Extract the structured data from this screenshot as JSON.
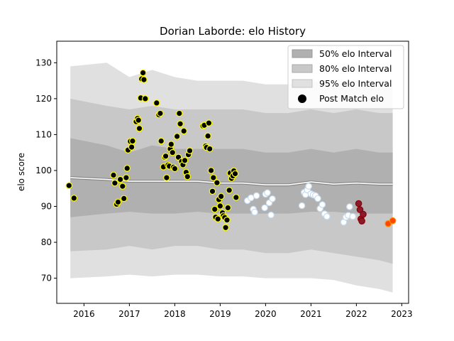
{
  "chart_data": {
    "type": "scatter",
    "title": "Dorian Laborde: elo History",
    "xlabel": "",
    "ylabel": "elo score",
    "xlim": [
      2015.4,
      2023.15
    ],
    "ylim": [
      63,
      136
    ],
    "x_ticks": [
      2016,
      2017,
      2018,
      2019,
      2020,
      2021,
      2022,
      2023
    ],
    "y_ticks": [
      70,
      80,
      90,
      100,
      110,
      120,
      130
    ],
    "grid": false,
    "legend_position": "top-right",
    "legend": [
      {
        "label": "50% elo Interval",
        "color": "#b0b0b0"
      },
      {
        "label": "80% elo Interval",
        "color": "#c8c8c8"
      },
      {
        "label": "95% elo Interval",
        "color": "#e0e0e0"
      },
      {
        "label": "Post Match elo",
        "color": "#000000"
      }
    ],
    "bands": {
      "x": [
        2015.7,
        2016.5,
        2017.0,
        2017.5,
        2018.0,
        2018.5,
        2019.0,
        2019.5,
        2020.0,
        2020.5,
        2021.0,
        2021.5,
        2022.0,
        2022.5,
        2022.8
      ],
      "p95_upper": [
        129,
        130,
        126,
        128,
        126,
        125,
        125,
        125,
        124,
        124,
        125,
        124,
        125,
        124,
        124
      ],
      "p80_upper": [
        120,
        118,
        117,
        118,
        117,
        117,
        117,
        117,
        116,
        116,
        117,
        116,
        117,
        116,
        116
      ],
      "p50_upper": [
        109,
        107,
        105,
        107,
        106,
        106,
        106,
        106,
        105,
        105,
        106,
        105,
        106,
        105,
        105
      ],
      "median": [
        98,
        97.5,
        97,
        97,
        97,
        97,
        96.5,
        96.5,
        96,
        96,
        96.8,
        96.2,
        96.5,
        96.2,
        96.2
      ],
      "p50_lower": [
        87,
        88,
        88.5,
        88,
        88,
        88.5,
        88,
        88,
        88,
        88,
        88.5,
        88.5,
        88,
        88,
        88
      ],
      "p80_lower": [
        77.5,
        78,
        79,
        78,
        79,
        79,
        78,
        78,
        77,
        77,
        78,
        77,
        76,
        75,
        74
      ],
      "p95_lower": [
        70,
        70.5,
        71,
        70.5,
        71,
        71,
        70.5,
        70.5,
        70,
        70,
        70,
        69.5,
        68,
        67,
        66
      ]
    },
    "series": [
      {
        "name": "",
        "edge": "#ffff00",
        "fill": "#000000",
        "points": [
          [
            2015.67,
            95.8
          ],
          [
            2015.78,
            92.3
          ],
          [
            2016.65,
            98.7
          ],
          [
            2016.68,
            96.5
          ],
          [
            2016.72,
            90.6
          ],
          [
            2016.75,
            91.2
          ],
          [
            2016.8,
            97.5
          ],
          [
            2016.85,
            95.6
          ],
          [
            2016.88,
            92.2
          ],
          [
            2016.93,
            98.0
          ],
          [
            2016.95,
            100.6
          ],
          [
            2016.97,
            105.7
          ],
          [
            2017.02,
            108.1
          ],
          [
            2017.05,
            106.5
          ],
          [
            2017.07,
            108.2
          ],
          [
            2017.15,
            113.6
          ],
          [
            2017.18,
            114.5
          ],
          [
            2017.2,
            114.0
          ],
          [
            2017.22,
            111.7
          ],
          [
            2017.25,
            120.2
          ],
          [
            2017.27,
            125.5
          ],
          [
            2017.3,
            127.2
          ],
          [
            2017.32,
            125.3
          ],
          [
            2017.35,
            120.0
          ],
          [
            2017.6,
            118.8
          ],
          [
            2017.65,
            115.5
          ],
          [
            2017.68,
            115.9
          ],
          [
            2017.7,
            108.2
          ],
          [
            2017.75,
            101.0
          ],
          [
            2017.78,
            103.7
          ],
          [
            2017.8,
            104.0
          ],
          [
            2017.82,
            98.0
          ],
          [
            2017.85,
            101.5
          ],
          [
            2017.88,
            101.2
          ],
          [
            2017.9,
            106.0
          ],
          [
            2017.92,
            107.3
          ],
          [
            2017.95,
            105.0
          ],
          [
            2017.97,
            100.9
          ],
          [
            2018.0,
            100.5
          ],
          [
            2018.05,
            109.5
          ],
          [
            2018.08,
            103.7
          ],
          [
            2018.1,
            115.9
          ],
          [
            2018.12,
            113.0
          ],
          [
            2018.15,
            102.5
          ],
          [
            2018.18,
            101.6
          ],
          [
            2018.2,
            111.0
          ],
          [
            2018.22,
            102.8
          ],
          [
            2018.25,
            99.5
          ],
          [
            2018.28,
            98.3
          ],
          [
            2018.3,
            104.4
          ],
          [
            2018.33,
            105.5
          ],
          [
            2018.62,
            112.4
          ],
          [
            2018.65,
            112.6
          ],
          [
            2018.68,
            106.8
          ],
          [
            2018.7,
            106.4
          ],
          [
            2018.73,
            109.6
          ],
          [
            2018.75,
            113.2
          ],
          [
            2018.77,
            106.0
          ],
          [
            2018.8,
            100.0
          ],
          [
            2018.83,
            94.2
          ],
          [
            2018.85,
            98.0
          ],
          [
            2018.88,
            89.2
          ],
          [
            2018.9,
            87.0
          ],
          [
            2018.93,
            96.6
          ],
          [
            2018.95,
            86.5
          ],
          [
            2018.97,
            91.9
          ],
          [
            2019.0,
            90.1
          ],
          [
            2019.02,
            92.8
          ],
          [
            2019.05,
            88.2
          ],
          [
            2019.07,
            87.4
          ],
          [
            2019.1,
            86.9
          ],
          [
            2019.12,
            84.1
          ],
          [
            2019.15,
            86.2
          ],
          [
            2019.17,
            89.6
          ],
          [
            2019.2,
            94.5
          ],
          [
            2019.22,
            99.3
          ],
          [
            2019.25,
            97.8
          ],
          [
            2019.28,
            98.5
          ],
          [
            2019.3,
            99.9
          ],
          [
            2019.33,
            99.1
          ],
          [
            2019.35,
            92.5
          ]
        ]
      },
      {
        "name": "",
        "edge": "#c6dbef",
        "fill": "#ffffff",
        "points": [
          [
            2019.6,
            91.6
          ],
          [
            2019.68,
            92.4
          ],
          [
            2019.73,
            89.2
          ],
          [
            2019.76,
            88.4
          ],
          [
            2019.8,
            93.0
          ],
          [
            2019.98,
            89.6
          ],
          [
            2020.0,
            93.4
          ],
          [
            2020.04,
            93.8
          ],
          [
            2020.08,
            91.0
          ],
          [
            2020.12,
            87.6
          ],
          [
            2020.15,
            92.1
          ],
          [
            2020.8,
            90.2
          ],
          [
            2020.85,
            93.9
          ],
          [
            2020.88,
            93.3
          ],
          [
            2020.92,
            94.6
          ],
          [
            2020.95,
            95.6
          ],
          [
            2021.0,
            93.5
          ],
          [
            2021.05,
            93.2
          ],
          [
            2021.1,
            93.0
          ],
          [
            2021.15,
            92.2
          ],
          [
            2021.2,
            89.4
          ],
          [
            2021.25,
            90.5
          ],
          [
            2021.3,
            87.9
          ],
          [
            2021.35,
            87.2
          ],
          [
            2021.72,
            85.6
          ],
          [
            2021.77,
            87.0
          ],
          [
            2021.82,
            87.5
          ],
          [
            2021.85,
            89.9
          ],
          [
            2021.92,
            87.2
          ]
        ]
      },
      {
        "name": "",
        "edge": "#8b0000",
        "fill": "#8b1a2e",
        "points": [
          [
            2022.05,
            90.8
          ],
          [
            2022.08,
            89.1
          ],
          [
            2022.1,
            86.5
          ],
          [
            2022.12,
            85.9
          ],
          [
            2022.15,
            87.8
          ]
        ]
      },
      {
        "name": "",
        "edge": "#ff8c00",
        "fill": "#ff4500",
        "points": [
          [
            2022.7,
            85.2
          ],
          [
            2022.8,
            86.0
          ]
        ]
      }
    ]
  }
}
